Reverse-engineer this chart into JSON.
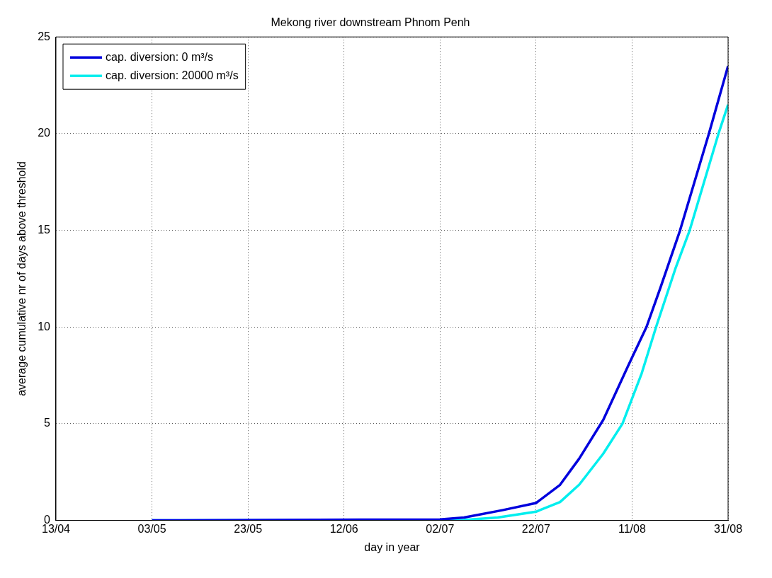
{
  "chart_data": {
    "type": "line",
    "title": "Mekong river downstream Phnom Penh",
    "xlabel": "day in year",
    "ylabel": "average cumulative nr of days above threshold",
    "xlim": [
      "--04-13",
      "--08-31"
    ],
    "xticks": [
      {
        "value": "--04-13",
        "label": "13/04"
      },
      {
        "value": "--05-03",
        "label": "03/05"
      },
      {
        "value": "--05-23",
        "label": "23/05"
      },
      {
        "value": "--06-12",
        "label": "12/06"
      },
      {
        "value": "--07-02",
        "label": "02/07"
      },
      {
        "value": "--07-22",
        "label": "22/07"
      },
      {
        "value": "--08-11",
        "label": "11/08"
      },
      {
        "value": "--08-31",
        "label": "31/08"
      }
    ],
    "ylim": [
      0,
      25
    ],
    "yticks": [
      0,
      5,
      10,
      15,
      20,
      25
    ],
    "grid": true,
    "legend": "top left",
    "line_style": "solid",
    "marker": "none",
    "series": [
      {
        "name": "cap. diversion: 0 m³/s",
        "color": "#0000dd",
        "x": [
          "--05-03",
          "--07-02",
          "--07-07",
          "--07-15",
          "--07-22",
          "--07-27",
          "--07-31",
          "--08-05",
          "--08-10",
          "--08-14",
          "--08-17",
          "--08-21",
          "--08-27",
          "--08-31"
        ],
        "values": [
          0,
          0.05,
          0.15,
          0.53,
          0.9,
          1.84,
          3.2,
          5.2,
          7.9,
          10,
          12.1,
          15,
          20,
          23.5
        ]
      },
      {
        "name": "cap. diversion: 20000 m³/s",
        "color": "#00eeee",
        "x": [
          "--05-03",
          "--07-07",
          "--07-14",
          "--07-22",
          "--07-27",
          "--07-31",
          "--08-05",
          "--08-09",
          "--08-13",
          "--08-16",
          "--08-20",
          "--08-23",
          "--08-29",
          "--08-31"
        ],
        "values": [
          0,
          0.02,
          0.15,
          0.45,
          0.95,
          1.85,
          3.45,
          5,
          7.6,
          10,
          13,
          15,
          20,
          21.5
        ]
      }
    ]
  }
}
